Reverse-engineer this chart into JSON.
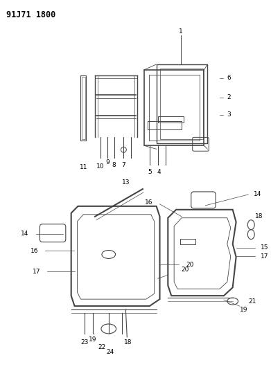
{
  "title": "91J71 1800",
  "background_color": "#ffffff",
  "text_color": "#000000",
  "line_color": "#444444",
  "fig_width": 3.91,
  "fig_height": 5.33,
  "dpi": 100
}
